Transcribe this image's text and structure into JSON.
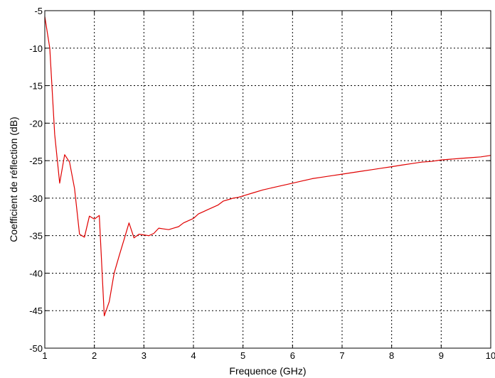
{
  "chart_data": {
    "type": "line",
    "xlabel": "Frequence (GHz)",
    "ylabel": "Coefficient de réflection (dB)",
    "xlim": [
      1,
      10
    ],
    "ylim": [
      -50,
      -5
    ],
    "xticks": [
      "1",
      "2",
      "3",
      "4",
      "5",
      "6",
      "7",
      "8",
      "9",
      "10"
    ],
    "yticks": [
      "-5",
      "-10",
      "-15",
      "-20",
      "-25",
      "-30",
      "-35",
      "-40",
      "-45",
      "-50"
    ],
    "grid": true,
    "series": [
      {
        "color": "#e00000",
        "x": [
          1.0,
          1.1,
          1.2,
          1.3,
          1.4,
          1.5,
          1.6,
          1.7,
          1.8,
          1.9,
          2.0,
          2.1,
          2.2,
          2.3,
          2.4,
          2.5,
          2.6,
          2.7,
          2.8,
          2.9,
          3.0,
          3.1,
          3.2,
          3.3,
          3.4,
          3.5,
          3.6,
          3.7,
          3.8,
          3.9,
          4.0,
          4.1,
          4.2,
          4.3,
          4.4,
          4.5,
          4.6,
          4.7,
          4.8,
          4.9,
          5.0,
          5.2,
          5.4,
          5.6,
          5.8,
          6.0,
          6.2,
          6.4,
          6.6,
          6.8,
          7.0,
          7.2,
          7.4,
          7.6,
          7.8,
          8.0,
          8.2,
          8.4,
          8.6,
          8.8,
          9.0,
          9.2,
          9.4,
          9.6,
          9.8,
          10.0
        ],
        "y": [
          -5.8,
          -10.0,
          -21.5,
          -28.0,
          -24.2,
          -25.2,
          -28.7,
          -34.8,
          -35.2,
          -32.4,
          -32.8,
          -32.3,
          -45.7,
          -43.8,
          -40.0,
          -37.7,
          -35.5,
          -33.3,
          -35.3,
          -34.8,
          -34.9,
          -35.0,
          -34.7,
          -34.0,
          -34.1,
          -34.2,
          -34.0,
          -33.8,
          -33.3,
          -33.0,
          -32.7,
          -32.1,
          -31.8,
          -31.5,
          -31.2,
          -30.9,
          -30.4,
          -30.2,
          -30.0,
          -29.9,
          -29.7,
          -29.3,
          -28.9,
          -28.6,
          -28.3,
          -28.0,
          -27.7,
          -27.4,
          -27.2,
          -27.0,
          -26.8,
          -26.6,
          -26.4,
          -26.2,
          -26.0,
          -25.8,
          -25.6,
          -25.4,
          -25.2,
          -25.1,
          -24.9,
          -24.8,
          -24.7,
          -24.6,
          -24.5,
          -24.3
        ]
      }
    ]
  }
}
